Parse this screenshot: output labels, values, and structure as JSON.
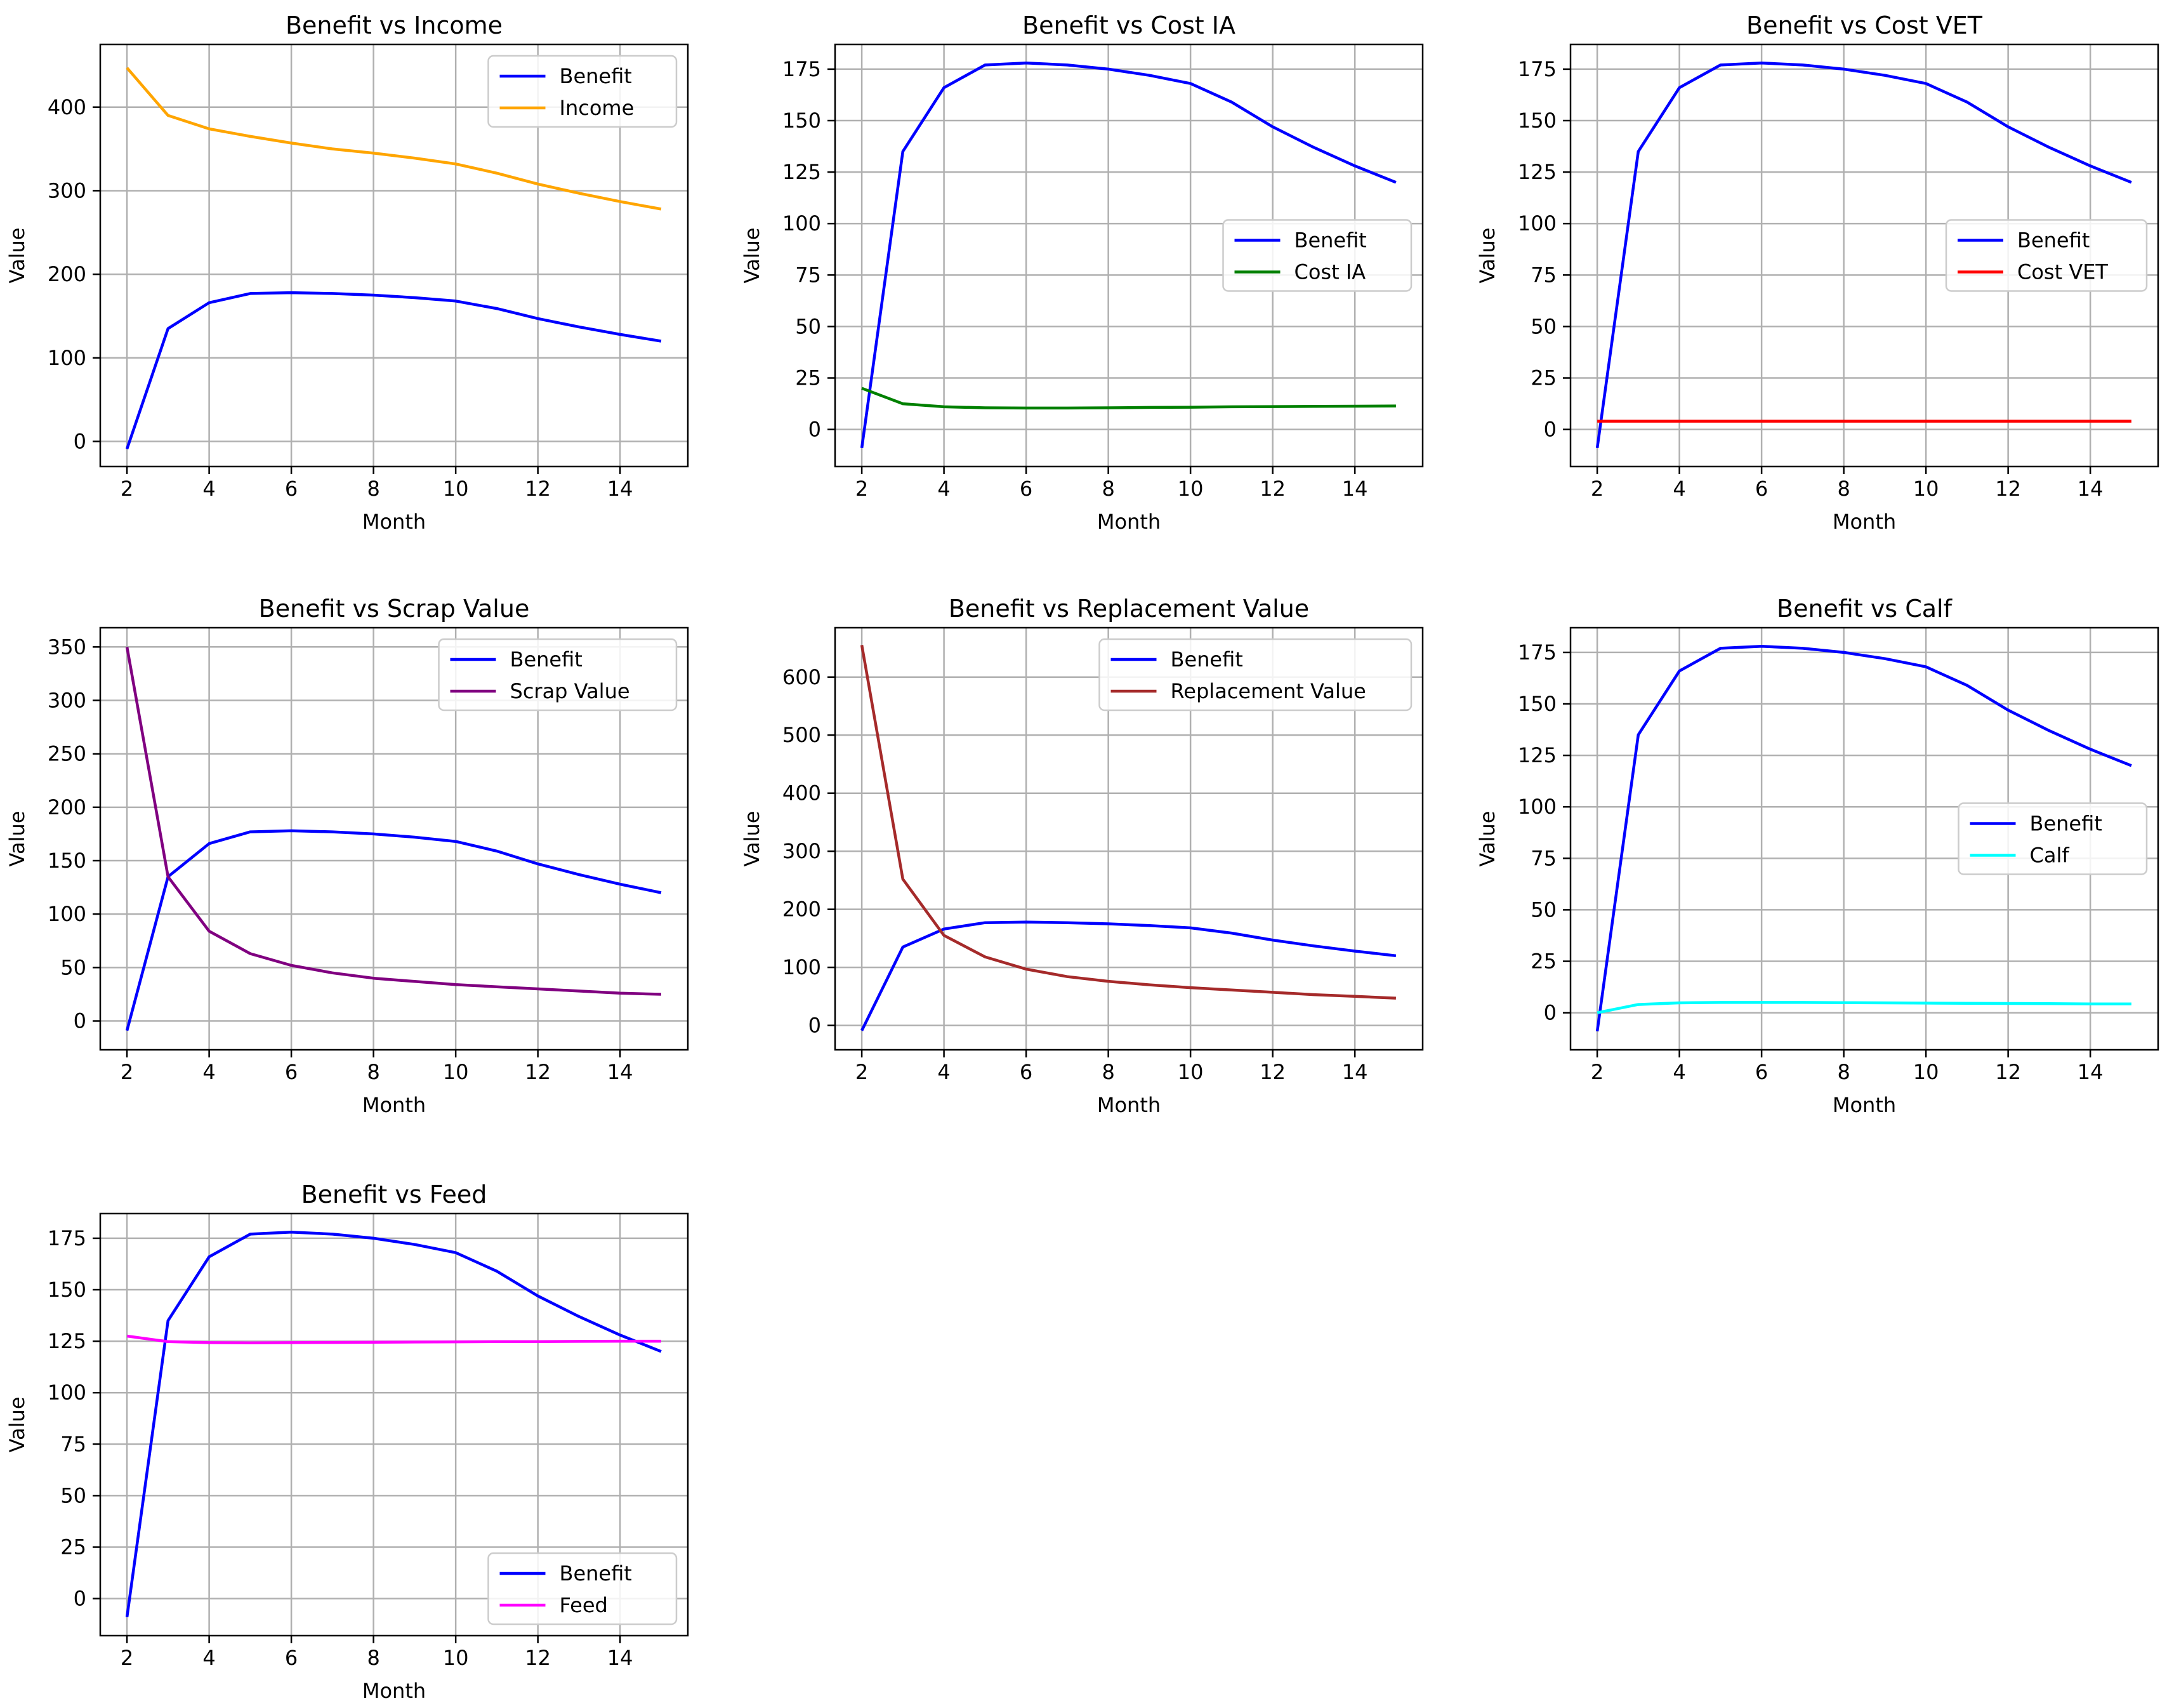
{
  "chart_data": [
    {
      "type": "line",
      "title": "Benefit vs Income",
      "xlabel": "Month",
      "ylabel": "Value",
      "x": [
        2,
        3,
        4,
        5,
        6,
        7,
        8,
        9,
        10,
        11,
        12,
        13,
        14,
        15
      ],
      "xlim": [
        1.35,
        15.65
      ],
      "ylim": [
        -30,
        475
      ],
      "xticks": [
        2,
        4,
        6,
        8,
        10,
        12,
        14
      ],
      "yticks": [
        0,
        100,
        200,
        300,
        400
      ],
      "grid": true,
      "legend": "upper right",
      "series": [
        {
          "name": "Benefit",
          "color": "#0000ff",
          "values": [
            -9,
            135,
            166,
            177,
            178,
            177,
            175,
            172,
            168,
            159,
            147,
            137,
            128,
            120
          ]
        },
        {
          "name": "Income",
          "color": "#ffa500",
          "values": [
            447,
            390,
            374,
            365,
            357,
            350,
            345,
            339,
            332,
            321,
            308,
            297,
            287,
            278
          ]
        }
      ]
    },
    {
      "type": "line",
      "title": "Benefit vs Cost IA",
      "xlabel": "Month",
      "ylabel": "Value",
      "x": [
        2,
        3,
        4,
        5,
        6,
        7,
        8,
        9,
        10,
        11,
        12,
        13,
        14,
        15
      ],
      "xlim": [
        1.35,
        15.65
      ],
      "ylim": [
        -18,
        187
      ],
      "xticks": [
        2,
        4,
        6,
        8,
        10,
        12,
        14
      ],
      "yticks": [
        0,
        25,
        50,
        75,
        100,
        125,
        150,
        175
      ],
      "grid": true,
      "legend": "center right",
      "series": [
        {
          "name": "Benefit",
          "color": "#0000ff",
          "values": [
            -9,
            135,
            166,
            177,
            178,
            177,
            175,
            172,
            168,
            159,
            147,
            137,
            128,
            120
          ]
        },
        {
          "name": "Cost IA",
          "color": "#008000",
          "values": [
            20,
            12.5,
            11,
            10.5,
            10.4,
            10.4,
            10.5,
            10.7,
            10.8,
            11,
            11.1,
            11.2,
            11.3,
            11.4
          ]
        }
      ]
    },
    {
      "type": "line",
      "title": "Benefit vs Cost VET",
      "xlabel": "Month",
      "ylabel": "Value",
      "x": [
        2,
        3,
        4,
        5,
        6,
        7,
        8,
        9,
        10,
        11,
        12,
        13,
        14,
        15
      ],
      "xlim": [
        1.35,
        15.65
      ],
      "ylim": [
        -18,
        187
      ],
      "xticks": [
        2,
        4,
        6,
        8,
        10,
        12,
        14
      ],
      "yticks": [
        0,
        25,
        50,
        75,
        100,
        125,
        150,
        175
      ],
      "grid": true,
      "legend": "center right",
      "series": [
        {
          "name": "Benefit",
          "color": "#0000ff",
          "values": [
            -9,
            135,
            166,
            177,
            178,
            177,
            175,
            172,
            168,
            159,
            147,
            137,
            128,
            120
          ]
        },
        {
          "name": "Cost VET",
          "color": "#ff0000",
          "values": [
            4,
            4,
            4,
            4,
            4,
            4,
            4,
            4,
            4,
            4,
            4,
            4,
            4,
            4
          ]
        }
      ]
    },
    {
      "type": "line",
      "title": "Benefit vs Scrap Value",
      "xlabel": "Month",
      "ylabel": "Value",
      "x": [
        2,
        3,
        4,
        5,
        6,
        7,
        8,
        9,
        10,
        11,
        12,
        13,
        14,
        15
      ],
      "xlim": [
        1.35,
        15.65
      ],
      "ylim": [
        -27,
        368
      ],
      "xticks": [
        2,
        4,
        6,
        8,
        10,
        12,
        14
      ],
      "yticks": [
        0,
        50,
        100,
        150,
        200,
        250,
        300,
        350
      ],
      "grid": true,
      "legend": "upper right",
      "series": [
        {
          "name": "Benefit",
          "color": "#0000ff",
          "values": [
            -9,
            135,
            166,
            177,
            178,
            177,
            175,
            172,
            168,
            159,
            147,
            137,
            128,
            120
          ]
        },
        {
          "name": "Scrap Value",
          "color": "#800080",
          "values": [
            350,
            135,
            84,
            63,
            52,
            45,
            40,
            37,
            34,
            32,
            30,
            28,
            26,
            25
          ]
        }
      ]
    },
    {
      "type": "line",
      "title": "Benefit vs Replacement Value",
      "xlabel": "Month",
      "ylabel": "Value",
      "x": [
        2,
        3,
        4,
        5,
        6,
        7,
        8,
        9,
        10,
        11,
        12,
        13,
        14,
        15
      ],
      "xlim": [
        1.35,
        15.65
      ],
      "ylim": [
        -42,
        685
      ],
      "xticks": [
        2,
        4,
        6,
        8,
        10,
        12,
        14
      ],
      "yticks": [
        0,
        100,
        200,
        300,
        400,
        500,
        600
      ],
      "grid": true,
      "legend": "upper right",
      "series": [
        {
          "name": "Benefit",
          "color": "#0000ff",
          "values": [
            -9,
            135,
            166,
            177,
            178,
            177,
            175,
            172,
            168,
            159,
            147,
            137,
            128,
            120
          ]
        },
        {
          "name": "Replacement Value",
          "color": "#a52a2a",
          "values": [
            655,
            252,
            155,
            118,
            97,
            84,
            76,
            70,
            65,
            61,
            57,
            53,
            50,
            47
          ]
        }
      ]
    },
    {
      "type": "line",
      "title": "Benefit vs Calf",
      "xlabel": "Month",
      "ylabel": "Value",
      "x": [
        2,
        3,
        4,
        5,
        6,
        7,
        8,
        9,
        10,
        11,
        12,
        13,
        14,
        15
      ],
      "xlim": [
        1.35,
        15.65
      ],
      "ylim": [
        -18,
        187
      ],
      "xticks": [
        2,
        4,
        6,
        8,
        10,
        12,
        14
      ],
      "yticks": [
        0,
        25,
        50,
        75,
        100,
        125,
        150,
        175
      ],
      "grid": true,
      "legend": "center right",
      "series": [
        {
          "name": "Benefit",
          "color": "#0000ff",
          "values": [
            -9,
            135,
            166,
            177,
            178,
            177,
            175,
            172,
            168,
            159,
            147,
            137,
            128,
            120
          ]
        },
        {
          "name": "Calf",
          "color": "#00ffff",
          "values": [
            0,
            4,
            4.8,
            5,
            5,
            5,
            4.9,
            4.8,
            4.7,
            4.6,
            4.5,
            4.4,
            4.3,
            4.3
          ]
        }
      ]
    },
    {
      "type": "line",
      "title": "Benefit vs Feed",
      "xlabel": "Month",
      "ylabel": "Value",
      "x": [
        2,
        3,
        4,
        5,
        6,
        7,
        8,
        9,
        10,
        11,
        12,
        13,
        14,
        15
      ],
      "xlim": [
        1.35,
        15.65
      ],
      "ylim": [
        -18,
        187
      ],
      "xticks": [
        2,
        4,
        6,
        8,
        10,
        12,
        14
      ],
      "yticks": [
        0,
        25,
        50,
        75,
        100,
        125,
        150,
        175
      ],
      "grid": true,
      "legend": "lower right",
      "series": [
        {
          "name": "Benefit",
          "color": "#0000ff",
          "values": [
            -9,
            135,
            166,
            177,
            178,
            177,
            175,
            172,
            168,
            159,
            147,
            137,
            128,
            120
          ]
        },
        {
          "name": "Feed",
          "color": "#ff00ff",
          "values": [
            127.5,
            124.8,
            124.3,
            124.2,
            124.3,
            124.4,
            124.5,
            124.6,
            124.7,
            124.8,
            124.8,
            124.9,
            125,
            125
          ]
        }
      ]
    }
  ]
}
